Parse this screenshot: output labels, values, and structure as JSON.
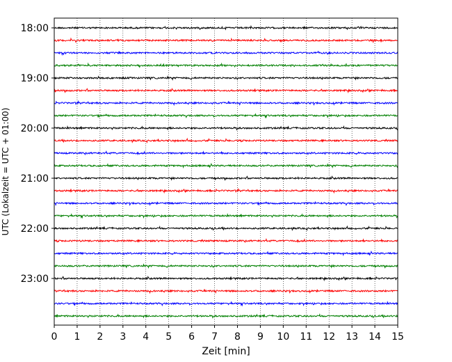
{
  "chart_data": {
    "type": "line",
    "title": "",
    "xlabel": "Zeit  [min]",
    "ylabel": "UTC (Lokalzeit = UTC + 01:00)",
    "xlim": [
      0,
      15
    ],
    "x_ticks": [
      "0",
      "1",
      "2",
      "3",
      "4",
      "5",
      "6",
      "7",
      "8",
      "9",
      "10",
      "11",
      "12",
      "13",
      "14",
      "15"
    ],
    "y_ticks": [
      "18:00",
      "19:00",
      "20:00",
      "21:00",
      "22:00",
      "23:00"
    ],
    "ylim": [
      "18:00",
      "23:59"
    ],
    "grid": "vertical dotted at each minute",
    "trace_colors": [
      "#000000",
      "#ff0000",
      "#0000ff",
      "#008000"
    ],
    "traces": [
      {
        "start": "18:00",
        "color": "#000000"
      },
      {
        "start": "18:15",
        "color": "#ff0000"
      },
      {
        "start": "18:30",
        "color": "#0000ff"
      },
      {
        "start": "18:45",
        "color": "#008000"
      },
      {
        "start": "19:00",
        "color": "#000000"
      },
      {
        "start": "19:15",
        "color": "#ff0000"
      },
      {
        "start": "19:30",
        "color": "#0000ff"
      },
      {
        "start": "19:45",
        "color": "#008000"
      },
      {
        "start": "20:00",
        "color": "#000000"
      },
      {
        "start": "20:15",
        "color": "#ff0000"
      },
      {
        "start": "20:30",
        "color": "#0000ff"
      },
      {
        "start": "20:45",
        "color": "#008000"
      },
      {
        "start": "21:00",
        "color": "#000000"
      },
      {
        "start": "21:15",
        "color": "#ff0000"
      },
      {
        "start": "21:30",
        "color": "#0000ff"
      },
      {
        "start": "21:45",
        "color": "#008000"
      },
      {
        "start": "22:00",
        "color": "#000000"
      },
      {
        "start": "22:15",
        "color": "#ff0000"
      },
      {
        "start": "22:30",
        "color": "#0000ff"
      },
      {
        "start": "22:45",
        "color": "#008000"
      },
      {
        "start": "23:00",
        "color": "#000000"
      },
      {
        "start": "23:15",
        "color": "#ff0000"
      },
      {
        "start": "23:30",
        "color": "#0000ff"
      },
      {
        "start": "23:45",
        "color": "#008000"
      }
    ]
  }
}
